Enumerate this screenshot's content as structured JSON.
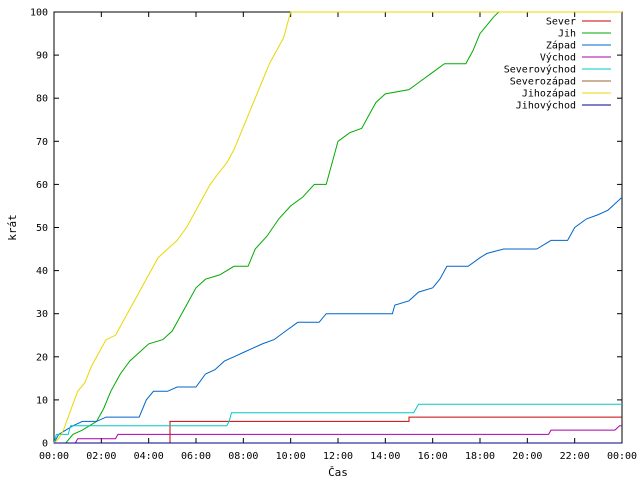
{
  "chart_data": {
    "type": "line",
    "title": "",
    "xlabel": "Čas",
    "ylabel": "krát",
    "xlim": [
      0,
      24
    ],
    "ylim": [
      0,
      100
    ],
    "x_tick_labels": [
      "00:00",
      "02:00",
      "04:00",
      "06:00",
      "08:00",
      "10:00",
      "12:00",
      "14:00",
      "16:00",
      "18:00",
      "20:00",
      "22:00",
      "00:00"
    ],
    "y_ticks": [
      0,
      10,
      20,
      30,
      40,
      50,
      60,
      70,
      80,
      90,
      100
    ],
    "legend_position": "top-right",
    "series": [
      {
        "name": "Sever",
        "color": "#cc0000",
        "points": [
          [
            0,
            0
          ],
          [
            4.9,
            0
          ],
          [
            4.9,
            5
          ],
          [
            15,
            5
          ],
          [
            15,
            6
          ],
          [
            24,
            6
          ]
        ]
      },
      {
        "name": "Jih",
        "color": "#00aa00",
        "points": [
          [
            0,
            0
          ],
          [
            0.5,
            0
          ],
          [
            0.8,
            2
          ],
          [
            1.2,
            3
          ],
          [
            1.8,
            5
          ],
          [
            2.1,
            8
          ],
          [
            2.4,
            12
          ],
          [
            2.8,
            16
          ],
          [
            3.2,
            19
          ],
          [
            3.6,
            21
          ],
          [
            4,
            23
          ],
          [
            4.6,
            24
          ],
          [
            5,
            26
          ],
          [
            5.3,
            29
          ],
          [
            5.6,
            32
          ],
          [
            6,
            36
          ],
          [
            6.4,
            38
          ],
          [
            7,
            39
          ],
          [
            7.6,
            41
          ],
          [
            8.2,
            41
          ],
          [
            8.5,
            45
          ],
          [
            9,
            48
          ],
          [
            9.5,
            52
          ],
          [
            10,
            55
          ],
          [
            10.5,
            57
          ],
          [
            11,
            60
          ],
          [
            11.5,
            60
          ],
          [
            11.8,
            66
          ],
          [
            12,
            70
          ],
          [
            12.5,
            72
          ],
          [
            13,
            73
          ],
          [
            13.3,
            76
          ],
          [
            13.6,
            79
          ],
          [
            14,
            81
          ],
          [
            15,
            82
          ],
          [
            15.5,
            84
          ],
          [
            16,
            86
          ],
          [
            16.5,
            88
          ],
          [
            17.4,
            88
          ],
          [
            17.7,
            91
          ],
          [
            18,
            95
          ],
          [
            18.3,
            97
          ],
          [
            18.6,
            99
          ],
          [
            18.8,
            100
          ],
          [
            24,
            100
          ]
        ]
      },
      {
        "name": "Západ",
        "color": "#0066cc",
        "points": [
          [
            0,
            0
          ],
          [
            0.2,
            2
          ],
          [
            0.8,
            4
          ],
          [
            1.2,
            5
          ],
          [
            1.8,
            5
          ],
          [
            2.2,
            6
          ],
          [
            3.6,
            6
          ],
          [
            3.9,
            10
          ],
          [
            4.2,
            12
          ],
          [
            4.8,
            12
          ],
          [
            5.2,
            13
          ],
          [
            6,
            13
          ],
          [
            6.4,
            16
          ],
          [
            6.8,
            17
          ],
          [
            7.2,
            19
          ],
          [
            7.6,
            20
          ],
          [
            8,
            21
          ],
          [
            8.4,
            22
          ],
          [
            8.8,
            23
          ],
          [
            9.3,
            24
          ],
          [
            9.8,
            26
          ],
          [
            10.3,
            28
          ],
          [
            11.2,
            28
          ],
          [
            11.5,
            30
          ],
          [
            12.5,
            30
          ],
          [
            13.5,
            30
          ],
          [
            14.3,
            30
          ],
          [
            14.4,
            32
          ],
          [
            15,
            33
          ],
          [
            15.4,
            35
          ],
          [
            16,
            36
          ],
          [
            16.3,
            38
          ],
          [
            16.6,
            41
          ],
          [
            17.5,
            41
          ],
          [
            18,
            43
          ],
          [
            18.3,
            44
          ],
          [
            19,
            45
          ],
          [
            20.4,
            45
          ],
          [
            21,
            47
          ],
          [
            21.7,
            47
          ],
          [
            22,
            50
          ],
          [
            22.5,
            52
          ],
          [
            23,
            53
          ],
          [
            23.4,
            54
          ],
          [
            23.8,
            56
          ],
          [
            24,
            57
          ]
        ]
      },
      {
        "name": "Východ",
        "color": "#aa00aa",
        "points": [
          [
            0,
            0
          ],
          [
            0.9,
            0
          ],
          [
            1,
            1
          ],
          [
            2.6,
            1
          ],
          [
            2.7,
            2
          ],
          [
            20.9,
            2
          ],
          [
            21,
            3
          ],
          [
            23.7,
            3
          ],
          [
            23.9,
            4
          ],
          [
            24,
            4
          ]
        ]
      },
      {
        "name": "Severovýchod",
        "color": "#00c8c8",
        "points": [
          [
            0,
            0
          ],
          [
            0.1,
            2
          ],
          [
            0.6,
            2
          ],
          [
            0.7,
            4
          ],
          [
            7.3,
            4
          ],
          [
            7.4,
            5
          ],
          [
            7.5,
            7
          ],
          [
            15.2,
            7
          ],
          [
            15.4,
            9
          ],
          [
            24,
            9
          ]
        ]
      },
      {
        "name": "Severozápad",
        "color": "#996633",
        "points": [
          [
            0,
            0
          ],
          [
            24,
            0
          ]
        ]
      },
      {
        "name": "Jihozápad",
        "color": "#e8d800",
        "points": [
          [
            0,
            0
          ],
          [
            0.2,
            1
          ],
          [
            0.4,
            3
          ],
          [
            0.6,
            6
          ],
          [
            0.8,
            9
          ],
          [
            1,
            12
          ],
          [
            1.3,
            14
          ],
          [
            1.6,
            18
          ],
          [
            1.9,
            21
          ],
          [
            2.2,
            24
          ],
          [
            2.6,
            25
          ],
          [
            2.9,
            28
          ],
          [
            3.2,
            31
          ],
          [
            3.5,
            34
          ],
          [
            3.8,
            37
          ],
          [
            4.1,
            40
          ],
          [
            4.4,
            43
          ],
          [
            4.8,
            45
          ],
          [
            5.2,
            47
          ],
          [
            5.6,
            50
          ],
          [
            5.9,
            53
          ],
          [
            6.3,
            57
          ],
          [
            6.6,
            60
          ],
          [
            7,
            63
          ],
          [
            7.3,
            65
          ],
          [
            7.6,
            68
          ],
          [
            7.9,
            72
          ],
          [
            8.2,
            76
          ],
          [
            8.5,
            80
          ],
          [
            8.8,
            84
          ],
          [
            9.1,
            88
          ],
          [
            9.4,
            91
          ],
          [
            9.7,
            94
          ],
          [
            9.85,
            97
          ],
          [
            10,
            100
          ],
          [
            24,
            100
          ]
        ]
      },
      {
        "name": "Jihovýchod",
        "color": "#000088",
        "points": [
          [
            0,
            0
          ],
          [
            24,
            0
          ]
        ]
      }
    ]
  }
}
